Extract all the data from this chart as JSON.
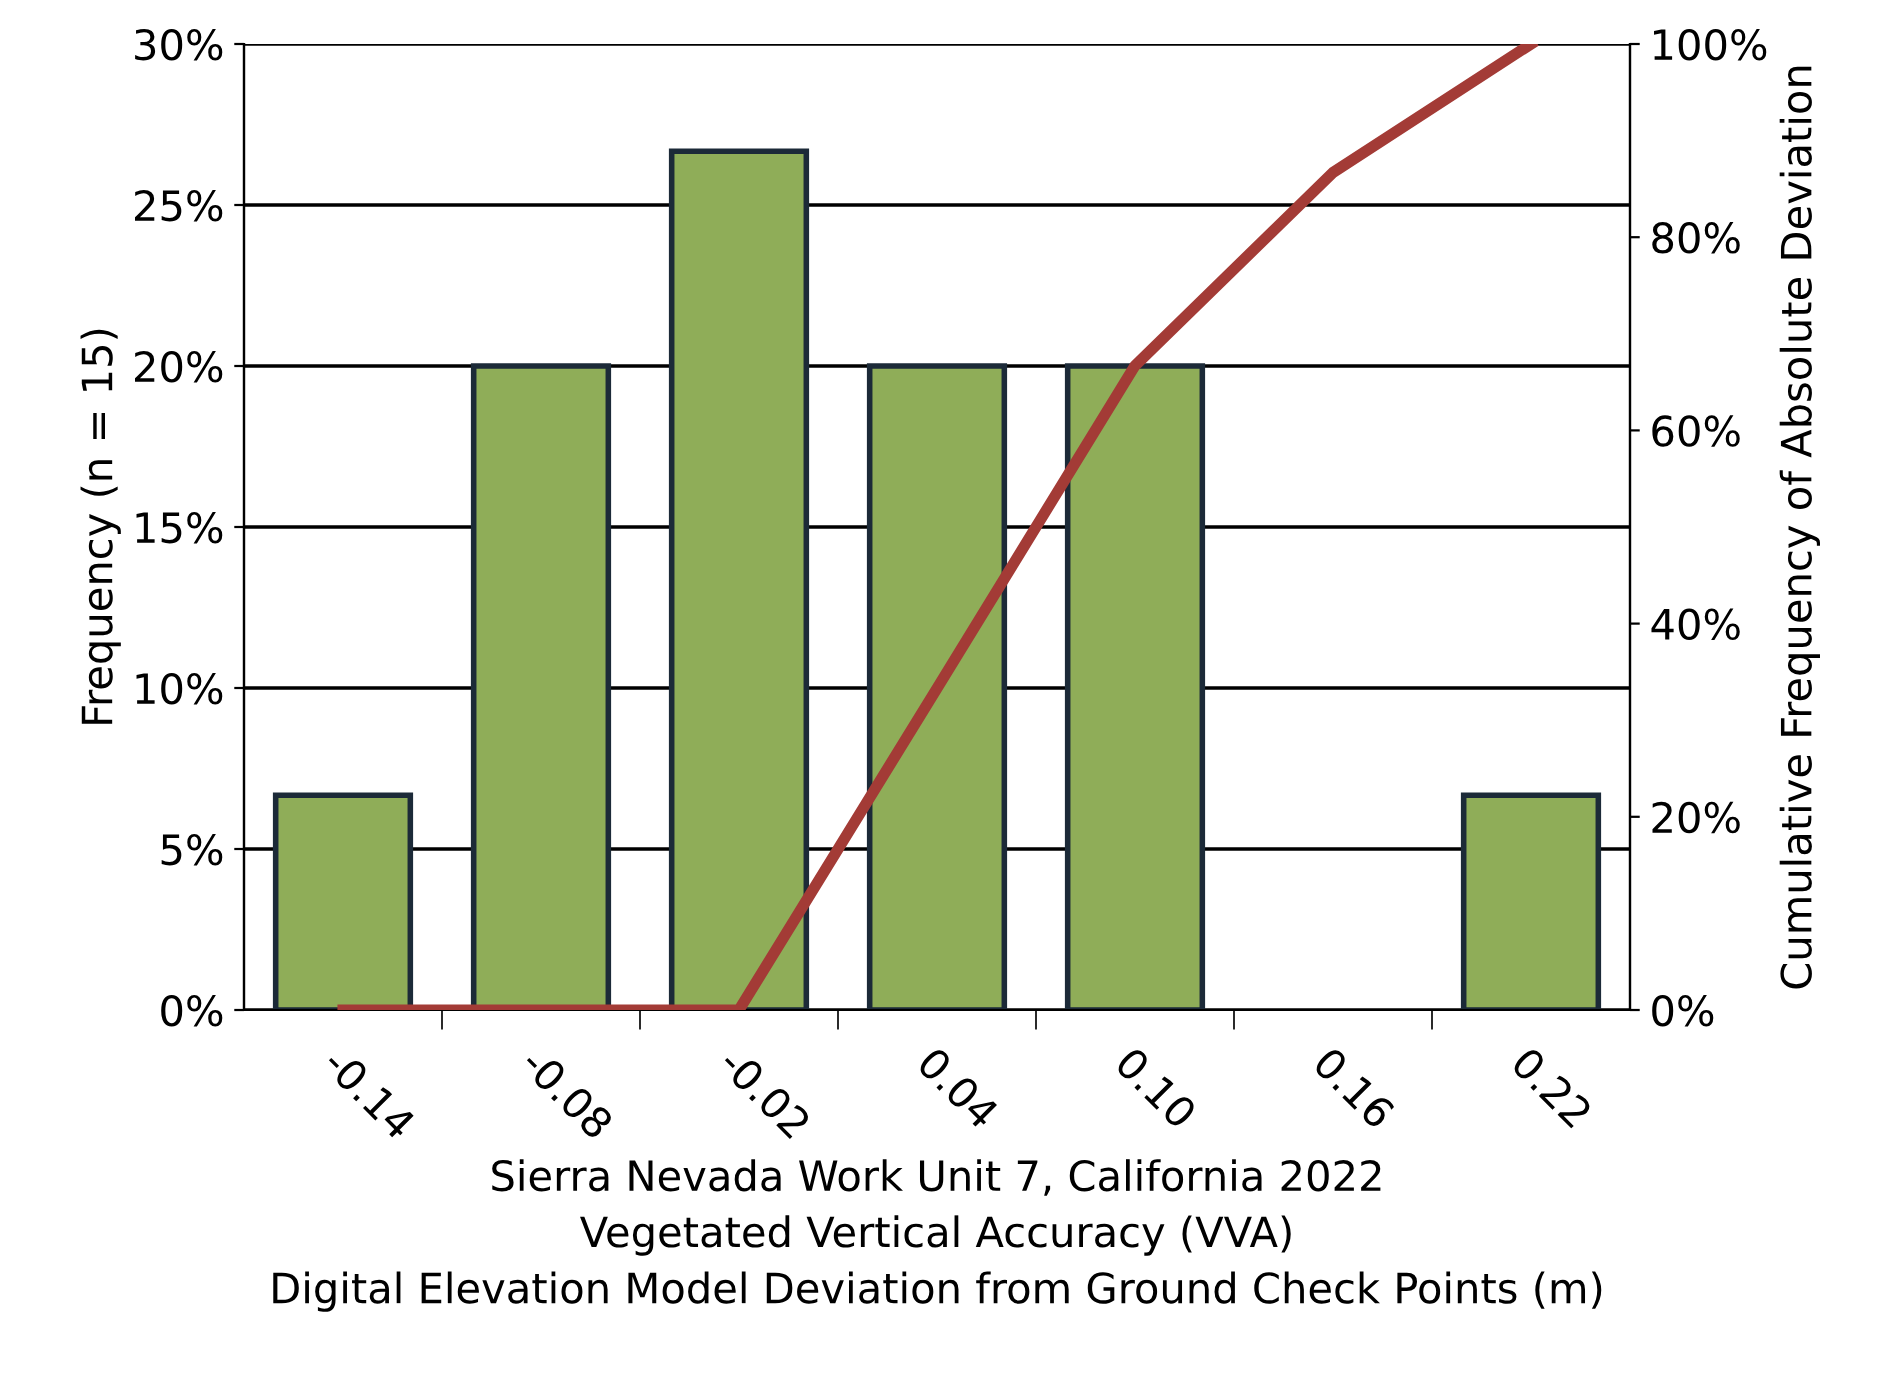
{
  "chart_data": {
    "type": "bar",
    "xlabel": "Sierra Nevada Work Unit 7, California 2022\nVegetated Vertical Accuracy (VVA)\nDigital Elevation Model Deviation from Ground Check Points (m)",
    "ylabel": "Frequency (n = 15)",
    "y2label": "Cumulative Frequency of Absolute Deviation",
    "categories": [
      "-0.14",
      "-0.08",
      "-0.02",
      "0.04",
      "0.10",
      "0.16",
      "0.22"
    ],
    "series": [
      {
        "color": "#8fad58",
        "values": [
          6.67,
          20,
          26.67,
          20,
          20,
          0,
          6.67
        ]
      },
      {
        "type": "line",
        "axis": "y2",
        "color": "#a33b36",
        "values": [
          0,
          0,
          0,
          33.3,
          66.7,
          86.7,
          100
        ]
      }
    ],
    "ylim": [
      0,
      30
    ],
    "yticks": [
      {
        "value": 0,
        "label": "0%"
      },
      {
        "value": 5,
        "label": "5%"
      },
      {
        "value": 10,
        "label": "10%"
      },
      {
        "value": 15,
        "label": "15%"
      },
      {
        "value": 20,
        "label": "20%"
      },
      {
        "value": 25,
        "label": "25%"
      },
      {
        "value": 30,
        "label": "30%"
      }
    ],
    "y2lim": [
      0,
      100
    ],
    "y2ticks": [
      {
        "value": 0,
        "label": "0%"
      },
      {
        "value": 20,
        "label": "20%"
      },
      {
        "value": 40,
        "label": "40%"
      },
      {
        "value": 60,
        "label": "60%"
      },
      {
        "value": 80,
        "label": "80%"
      },
      {
        "value": 100,
        "label": "100%"
      }
    ],
    "grid": "y"
  }
}
